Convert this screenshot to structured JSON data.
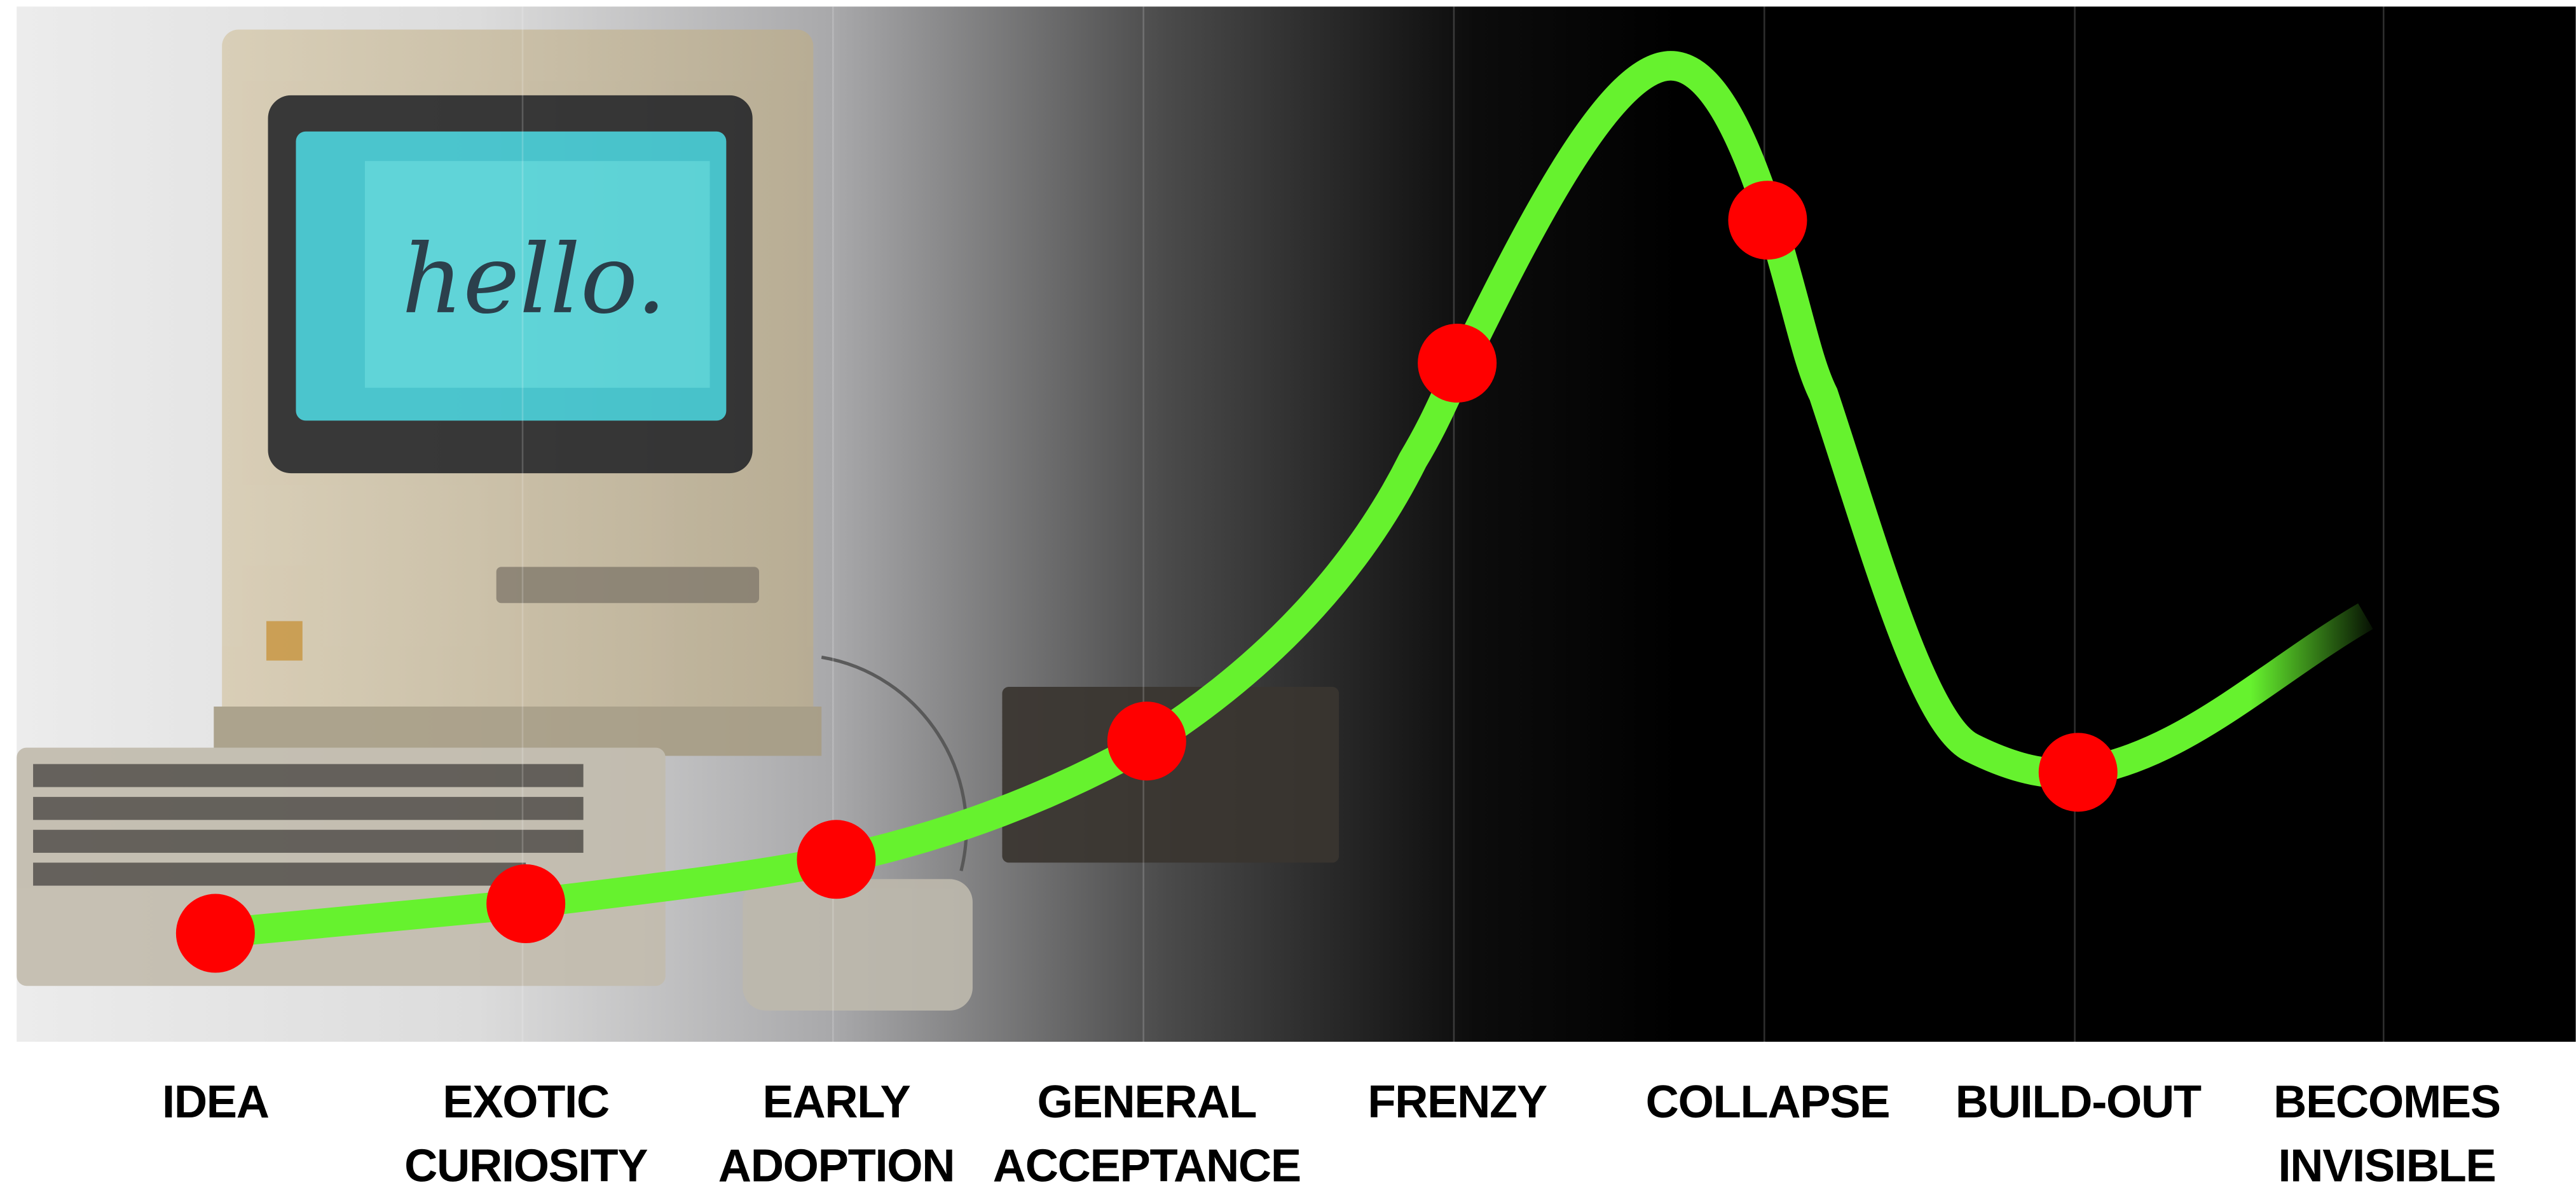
{
  "photo_screen_text": "hello.",
  "stages": [
    [
      "IDEA"
    ],
    [
      "EXOTIC",
      "CURIOSITY"
    ],
    [
      "EARLY",
      "ADOPTION"
    ],
    [
      "GENERAL",
      "ACCEPTANCE"
    ],
    [
      "FRENZY"
    ],
    [
      "COLLAPSE"
    ],
    [
      "BUILD-OUT"
    ],
    [
      "BECOMES",
      "INVISIBLE"
    ]
  ]
}
